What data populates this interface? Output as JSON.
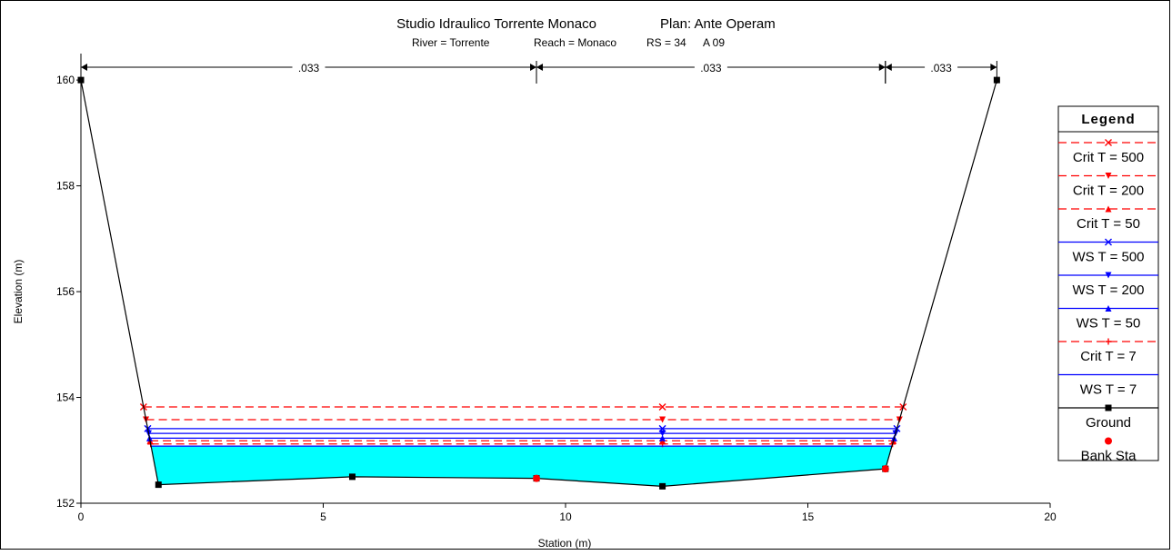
{
  "chart_data": {
    "type": "line",
    "title": "Studio Idraulico Torrente Monaco",
    "plan": "Plan: Ante Operam",
    "subtitle": {
      "river": "River = Torrente",
      "reach": "Reach = Monaco",
      "rs": "RS = 34",
      "label": "A 09"
    },
    "xlabel": "Station (m)",
    "ylabel": "Elevation (m)",
    "xlim": [
      0,
      20
    ],
    "ylim": [
      152,
      160.5
    ],
    "xticks": [
      0,
      5,
      10,
      15,
      20
    ],
    "yticks": [
      152,
      154,
      156,
      158,
      160
    ],
    "grid": false,
    "legend_placement": "right",
    "legend_title": "Legend",
    "manning": [
      {
        "from": 0,
        "to": 9.4,
        "label": ".033"
      },
      {
        "from": 9.4,
        "to": 16.6,
        "label": ".033"
      },
      {
        "from": 16.6,
        "to": 18.9,
        "label": ".033"
      }
    ],
    "ground": {
      "x": [
        0,
        1.6,
        5.6,
        9.4,
        12.0,
        16.6,
        18.9
      ],
      "y": [
        160.0,
        152.35,
        152.5,
        152.47,
        152.32,
        152.65,
        160.0
      ]
    },
    "bank_stations": {
      "x": [
        9.4,
        16.6
      ],
      "y": [
        152.47,
        152.65
      ]
    },
    "series": [
      {
        "name": "Crit  T = 500",
        "elev": 153.82,
        "kind": "crit",
        "marker": "x",
        "color": "#ff0000"
      },
      {
        "name": "Crit  T = 200",
        "elev": 153.58,
        "kind": "crit",
        "marker": "tri-down",
        "color": "#ff0000"
      },
      {
        "name": "Crit  T = 50",
        "elev": 153.18,
        "kind": "crit",
        "marker": "tri-up",
        "color": "#ff0000"
      },
      {
        "name": "WS  T = 500",
        "elev": 153.41,
        "kind": "ws",
        "marker": "x",
        "color": "#0000ff"
      },
      {
        "name": "WS  T = 200",
        "elev": 153.32,
        "kind": "ws",
        "marker": "tri-down",
        "color": "#0000ff"
      },
      {
        "name": "WS  T = 50",
        "elev": 153.23,
        "kind": "ws",
        "marker": "tri-up",
        "color": "#0000ff"
      },
      {
        "name": "Crit  T = 7",
        "elev": 153.12,
        "kind": "crit",
        "marker": "plus",
        "color": "#ff0000"
      },
      {
        "name": "WS  T = 7",
        "elev": 153.08,
        "kind": "ws",
        "marker": "none",
        "color": "#0000ff"
      },
      {
        "name": "Ground",
        "kind": "ground",
        "marker": "square",
        "color": "#000000"
      },
      {
        "name": "Bank Sta",
        "kind": "bank",
        "marker": "dot",
        "color": "#ff0000"
      }
    ],
    "fill_color": "#00ffff"
  }
}
